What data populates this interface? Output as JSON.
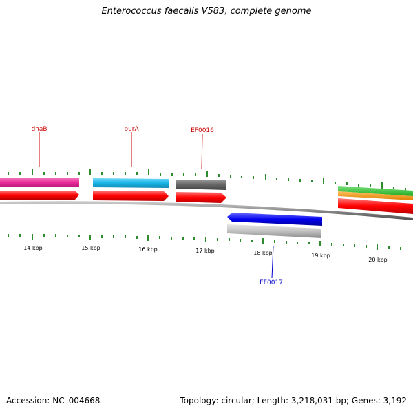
{
  "title": "Enterococcus faecalis V583, complete genome",
  "footer": {
    "accession": "Accession: NC_004668",
    "summary": "Topology: circular; Length: 3,218,031 bp; Genes: 3,192"
  },
  "tick_labels": [
    "14 kbp",
    "15 kbp",
    "16 kbp",
    "17 kbp",
    "18 kbp",
    "19 kbp",
    "20 kbp"
  ],
  "gene_labels": {
    "dnaB": "dnaB",
    "purA": "purA",
    "EF0016": "EF0016",
    "EF0017": "EF0017"
  },
  "colors": {
    "backbone": "#8a8a8a",
    "tick": "#2e8b2e",
    "forward_cds": "#ff0000",
    "dnaB_feature": "#e8289a",
    "purA_feature": "#19b6e8",
    "EF0016_feature": "#666666",
    "EF0017_cds": "#0000ee",
    "EF0017_feature": "#c0c0c0",
    "label_red": "#cc0000",
    "label_blue": "#0000cc",
    "stack_green": "#33cc33",
    "stack_orange": "#ff9900"
  }
}
